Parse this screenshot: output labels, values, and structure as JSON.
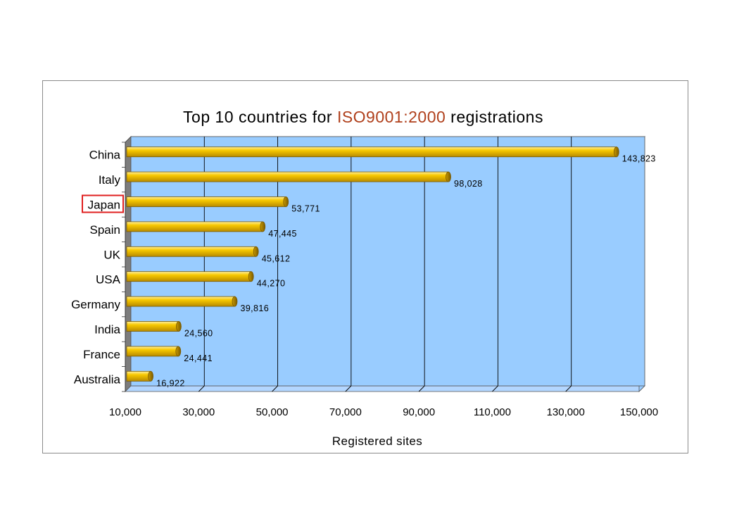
{
  "chart_data": {
    "type": "bar",
    "orientation": "horizontal",
    "title_prefix": "Top 10 countries for ",
    "title_highlight": "ISO9001:2000",
    "title_suffix": " registrations",
    "xlabel": "Registered sites",
    "ylabel": "",
    "xlim": [
      10000,
      150000
    ],
    "xticks": [
      10000,
      30000,
      50000,
      70000,
      90000,
      110000,
      130000,
      150000
    ],
    "xtick_labels": [
      "10,000",
      "30,000",
      "50,000",
      "70,000",
      "90,000",
      "110,000",
      "130,000",
      "150,000"
    ],
    "categories": [
      "China",
      "Italy",
      "Japan",
      "Spain",
      "UK",
      "USA",
      "Germany",
      "India",
      "France",
      "Australia"
    ],
    "values": [
      143823,
      98028,
      53771,
      47445,
      45612,
      44270,
      39816,
      24560,
      24441,
      16922
    ],
    "value_labels": [
      "143,823",
      "98,028",
      "53,771",
      "47,445",
      "45,612",
      "44,270",
      "39,816",
      "24,560",
      "24,441",
      "16,922"
    ],
    "highlighted_category": "Japan",
    "grid": "vertical",
    "legend": "none",
    "colors": {
      "plot_background": "#99ccff",
      "bar_fill": "#f5c000",
      "bar_edge": "#7a5a00",
      "highlight_box": "#e02020",
      "title_highlight": "#b0401c"
    }
  }
}
